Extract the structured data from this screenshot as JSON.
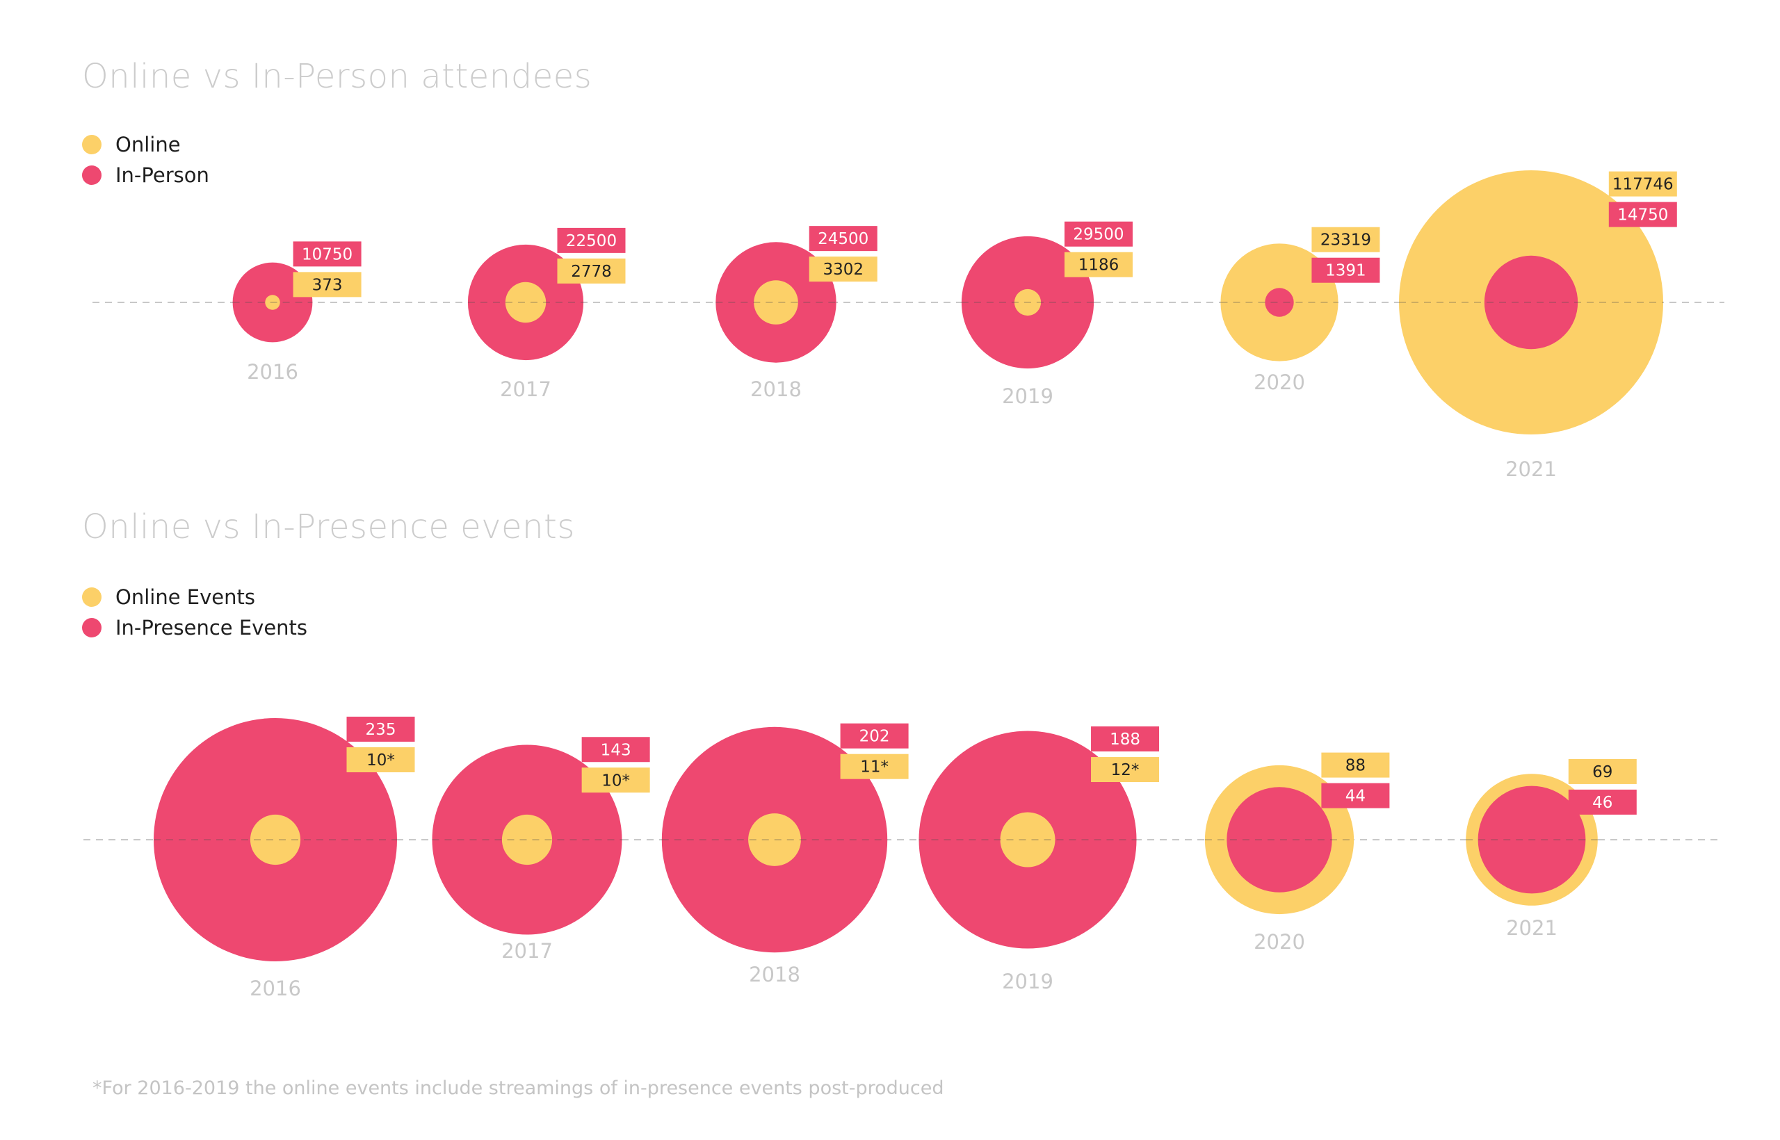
{
  "colors": {
    "online": "#FCD068",
    "in_person": "#EE4870",
    "muted_text": "#c8c8c8",
    "baseline": "#c8c8c8",
    "dark_text": "#222222"
  },
  "footnote": "*For 2016-2019 the online events include streamings of in-presence events post-produced",
  "chart_data": [
    {
      "type": "bubble",
      "title": "Online vs In-Person attendees",
      "legend": [
        "Online",
        "In-Person"
      ],
      "legend_placement": "top-left",
      "categories": [
        "2016",
        "2017",
        "2018",
        "2019",
        "2020",
        "2021"
      ],
      "series": [
        {
          "name": "Online",
          "values": [
            373,
            2778,
            3302,
            1186,
            23319,
            117746
          ],
          "labels": [
            "373",
            "2778",
            "3302",
            "1186",
            "23319",
            "117746"
          ]
        },
        {
          "name": "In-Person",
          "values": [
            10750,
            22500,
            24500,
            29500,
            1391,
            14750
          ],
          "labels": [
            "10750",
            "22500",
            "24500",
            "29500",
            "1391",
            "14750"
          ]
        }
      ]
    },
    {
      "type": "bubble",
      "title": "Online vs In-Presence events",
      "legend": [
        "Online Events",
        "In-Presence Events"
      ],
      "legend_placement": "top-left",
      "categories": [
        "2016",
        "2017",
        "2018",
        "2019",
        "2020",
        "2021"
      ],
      "series": [
        {
          "name": "Online Events",
          "values": [
            10,
            10,
            11,
            12,
            88,
            69
          ],
          "labels": [
            "10*",
            "10*",
            "11*",
            "12*",
            "88",
            "69"
          ]
        },
        {
          "name": "In-Presence Events",
          "values": [
            235,
            143,
            202,
            188,
            44,
            46
          ],
          "labels": [
            "235",
            "143",
            "202",
            "188",
            "44",
            "46"
          ]
        }
      ]
    }
  ]
}
